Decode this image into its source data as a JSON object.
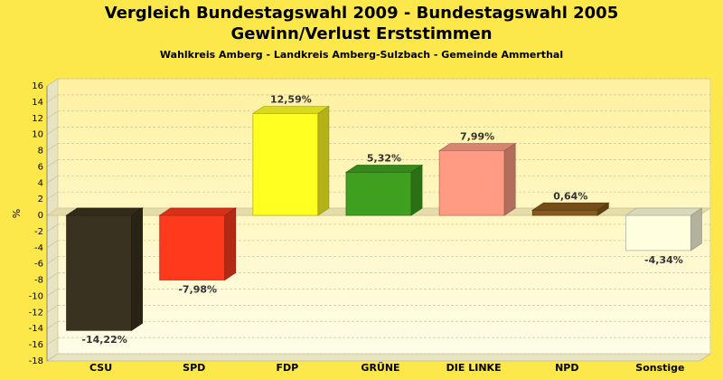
{
  "chart_data": {
    "type": "bar",
    "title": "Vergleich Bundestagswahl 2009 - Bundestagswahl 2005",
    "subtitle": "Gewinn/Verlust Erststimmen",
    "subsubtitle": "Wahlkreis Amberg - Landkreis Amberg-Sulzbach - Gemeinde Ammerthal",
    "ylabel": "%",
    "xlabel": "",
    "ylim": [
      -18,
      16
    ],
    "yticks": [
      16,
      14,
      12,
      10,
      8,
      6,
      4,
      2,
      0,
      -2,
      -4,
      -6,
      -8,
      -10,
      -12,
      -14,
      -16,
      -18
    ],
    "categories": [
      "CSU",
      "SPD",
      "FDP",
      "GRÜNE",
      "DIE LINKE",
      "NPD",
      "Sonstige"
    ],
    "values": [
      -14.22,
      -7.98,
      12.59,
      5.32,
      7.99,
      0.64,
      -4.34
    ],
    "value_labels": [
      "-14,22%",
      "-7,98%",
      "12,59%",
      "5,32%",
      "7,99%",
      "0,64%",
      "-4,34%"
    ],
    "colors": [
      "#3a3220",
      "#ff3a1c",
      "#ffff22",
      "#3fa020",
      "#ff9b82",
      "#8a5a1c",
      "#ffffe0"
    ],
    "grid": true,
    "legend": "none"
  }
}
